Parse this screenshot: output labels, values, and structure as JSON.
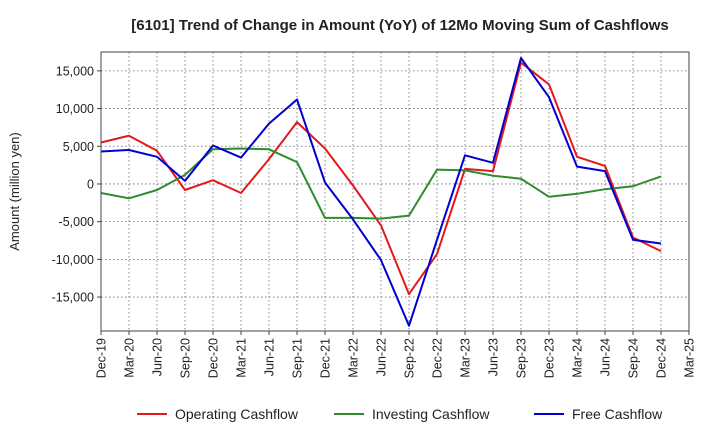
{
  "chart_data": {
    "type": "line",
    "title": "[6101]  Trend of Change in Amount (YoY) of 12Mo Moving Sum of Cashflows",
    "xlabel": "",
    "ylabel": "Amount (million yen)",
    "ylim": [
      -19500,
      17500
    ],
    "yticks": [
      15000,
      10000,
      5000,
      0,
      -5000,
      -10000,
      -15000
    ],
    "ytick_labels": [
      "15,000",
      "10,000",
      "5,000",
      "0",
      "-5,000",
      "-10,000",
      "-15,000"
    ],
    "categories": [
      "Dec-19",
      "Mar-20",
      "Jun-20",
      "Sep-20",
      "Dec-20",
      "Mar-21",
      "Jun-21",
      "Sep-21",
      "Dec-21",
      "Mar-22",
      "Jun-22",
      "Sep-22",
      "Dec-22",
      "Mar-23",
      "Jun-23",
      "Sep-23",
      "Dec-23",
      "Mar-24",
      "Jun-24",
      "Sep-24",
      "Dec-24",
      "Mar-25"
    ],
    "grid": true,
    "legend_position": "bottom",
    "series": [
      {
        "name": "Operating Cashflow",
        "color": "#e3191c",
        "values": [
          5500,
          6400,
          4400,
          -800,
          500,
          -1200,
          3300,
          8200,
          4700,
          -200,
          -5500,
          -14600,
          -9300,
          2000,
          1700,
          16100,
          13200,
          3600,
          2400,
          -7100,
          -8900,
          null
        ]
      },
      {
        "name": "Investing Cashflow",
        "color": "#2e8b2e",
        "values": [
          -1200,
          -1900,
          -800,
          1200,
          4600,
          4700,
          4600,
          2900,
          -4500,
          -4500,
          -4600,
          -4200,
          1900,
          1800,
          1100,
          700,
          -1700,
          -1300,
          -700,
          -300,
          1000,
          null
        ]
      },
      {
        "name": "Free Cashflow",
        "color": "#0000d0",
        "values": [
          4300,
          4500,
          3600,
          400,
          5100,
          3500,
          8000,
          11200,
          200,
          -4700,
          -10100,
          -18800,
          -7400,
          3800,
          2800,
          16700,
          11500,
          2300,
          1700,
          -7400,
          -7900,
          null
        ]
      }
    ]
  }
}
